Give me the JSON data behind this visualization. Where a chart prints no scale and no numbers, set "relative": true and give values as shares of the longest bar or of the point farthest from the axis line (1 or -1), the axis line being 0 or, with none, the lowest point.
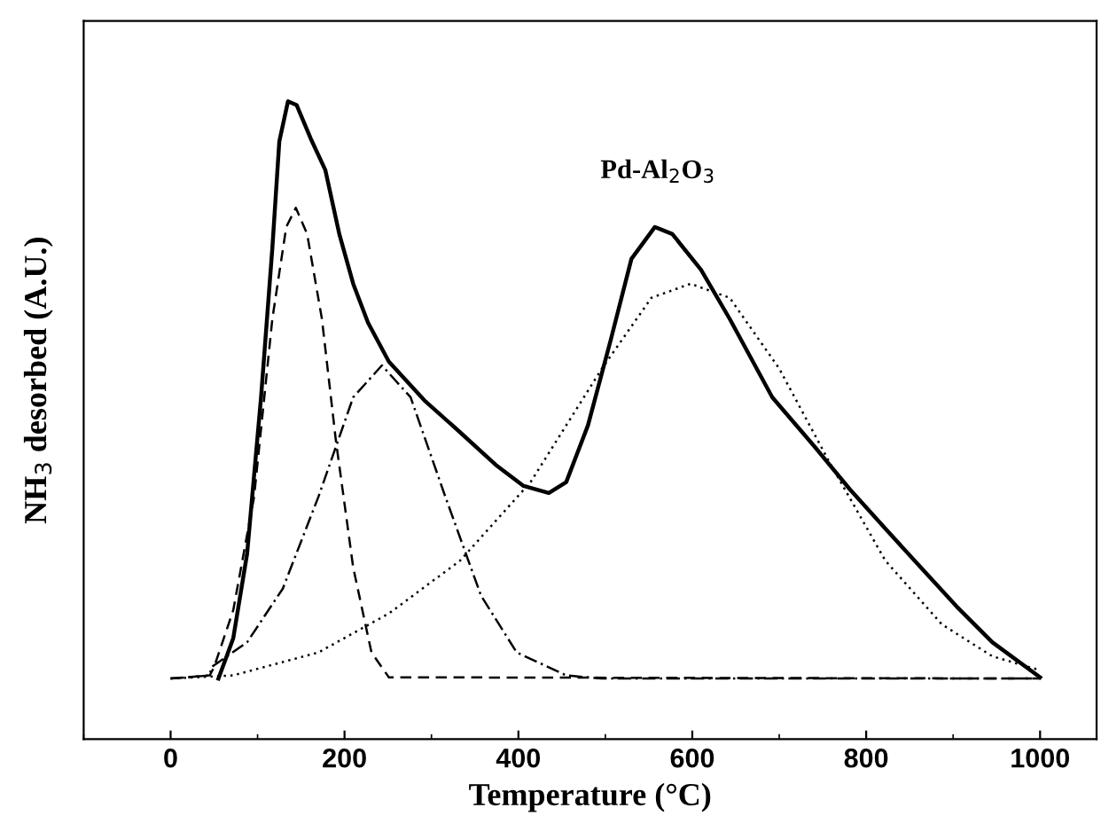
{
  "chart_data": {
    "type": "line",
    "relative": true,
    "xlabel": "Temperature (°C)",
    "ylabel": "NH$_{3}$ desorbed (A.U.)",
    "annotations": [
      "Pd-Al$_{2}$O$_{3}$"
    ],
    "xlim": [
      -100,
      1065
    ],
    "xticks": [
      0,
      200,
      400,
      600,
      800,
      1000
    ],
    "grid": false,
    "legend": false,
    "marker": "none",
    "series": [
      {
        "color": "#000000",
        "line_style": "solid",
        "x": [
          55,
          72,
          88,
          104,
          117,
          125,
          135,
          145,
          161,
          178,
          194,
          210,
          227,
          251,
          292,
          333,
          374,
          406,
          435,
          455,
          480,
          506,
          530,
          557,
          577,
          610,
          643,
          692,
          741,
          781,
          822,
          863,
          904,
          945,
          1000
        ],
        "values": [
          0.095,
          0.158,
          0.291,
          0.536,
          0.77,
          0.937,
          1,
          0.994,
          0.942,
          0.892,
          0.792,
          0.714,
          0.653,
          0.592,
          0.531,
          0.481,
          0.43,
          0.397,
          0.386,
          0.403,
          0.492,
          0.625,
          0.753,
          0.803,
          0.792,
          0.736,
          0.659,
          0.536,
          0.458,
          0.392,
          0.33,
          0.269,
          0.208,
          0.152,
          0.097
        ]
      },
      {
        "color": "#000000",
        "line_style": "dashed",
        "x": [
          0,
          45,
          50,
          72,
          96,
          117,
          133,
          144,
          157,
          174,
          190,
          210,
          231,
          251,
          1000
        ],
        "values": [
          0.095,
          0.1,
          0.113,
          0.202,
          0.38,
          0.659,
          0.803,
          0.833,
          0.792,
          0.659,
          0.469,
          0.269,
          0.136,
          0.097,
          0.095
        ]
      },
      {
        "color": "#000000",
        "line_style": "dashdot",
        "x": [
          0,
          45,
          47,
          88,
          129,
          170,
          210,
          243,
          276,
          316,
          357,
          398,
          455,
          496,
          1000
        ],
        "values": [
          0.095,
          0.1,
          0.113,
          0.152,
          0.236,
          0.38,
          0.536,
          0.586,
          0.536,
          0.38,
          0.225,
          0.136,
          0.1,
          0.095,
          0.095
        ]
      },
      {
        "color": "#000000",
        "line_style": "dotted",
        "x": [
          0,
          72,
          170,
          251,
          333,
          414,
          496,
          553,
          598,
          643,
          700,
          757,
          822,
          887,
          945,
          1000
        ],
        "values": [
          0.095,
          0.1,
          0.136,
          0.197,
          0.28,
          0.403,
          0.581,
          0.692,
          0.714,
          0.692,
          0.581,
          0.436,
          0.28,
          0.18,
          0.13,
          0.108
        ]
      }
    ]
  }
}
